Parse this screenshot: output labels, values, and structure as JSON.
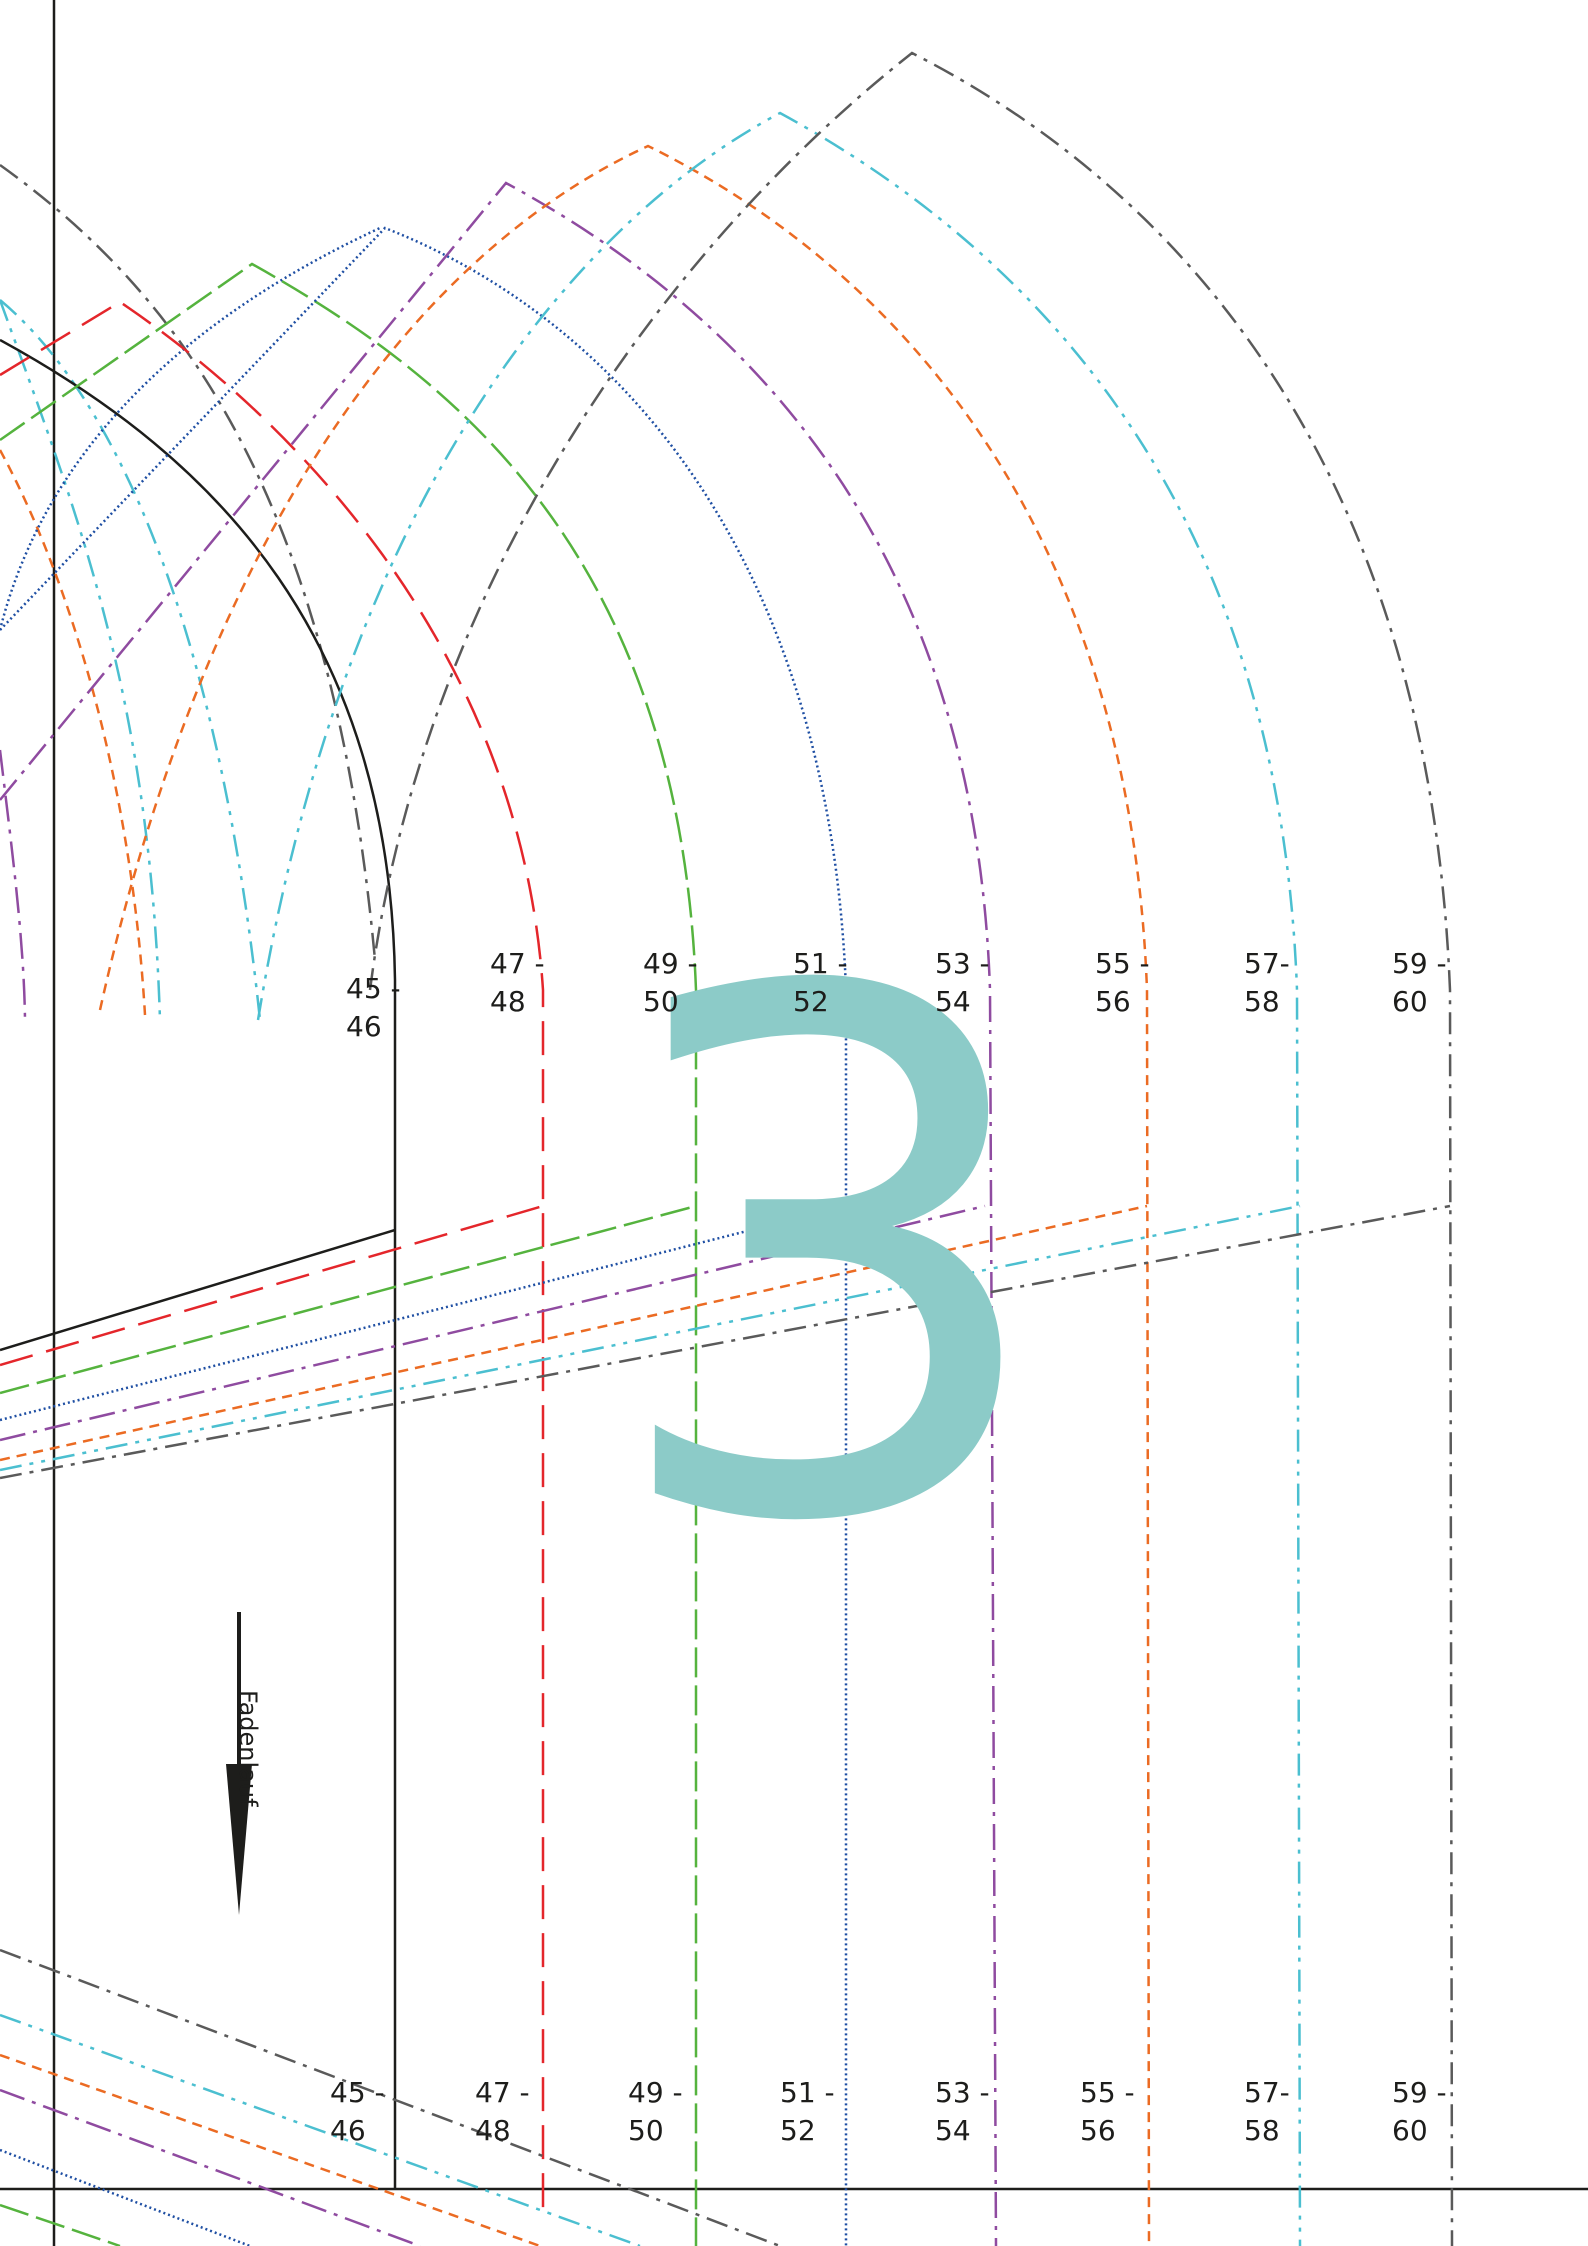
{
  "page_number": "3",
  "grainline_label": "Fadenlauf",
  "colors": {
    "outline": "#1d1d1b",
    "size_45_46": "#1d1d1b",
    "size_47_48": "#e4262b",
    "size_49_50": "#55b33e",
    "size_51_52": "#1f4fa3",
    "size_53_54": "#8f4ba0",
    "size_55_56": "#eb6b23",
    "size_57_58": "#4bbfd0",
    "size_59_60": "#5a5a5a",
    "page_number": "#8ccbc8"
  },
  "size_labels_upper": [
    {
      "id": "45-46",
      "text": "45 -\n46"
    },
    {
      "id": "47-48",
      "text": "47 -\n48"
    },
    {
      "id": "49-50",
      "text": "49 -\n50"
    },
    {
      "id": "51-52",
      "text": "51 -\n52"
    },
    {
      "id": "53-54",
      "text": "53 -\n54"
    },
    {
      "id": "55-56",
      "text": "55 -\n56"
    },
    {
      "id": "57-58",
      "text": "57-\n58"
    },
    {
      "id": "59-60",
      "text": "59 -\n60"
    }
  ],
  "size_labels_lower": [
    {
      "id": "45-46",
      "text": "45 -\n46"
    },
    {
      "id": "47-48",
      "text": "47 -\n48"
    },
    {
      "id": "49-50",
      "text": "49 -\n50"
    },
    {
      "id": "51-52",
      "text": "51 -\n52"
    },
    {
      "id": "53-54",
      "text": "53 -\n54"
    },
    {
      "id": "55-56",
      "text": "55 -\n56"
    },
    {
      "id": "57-58",
      "text": "57-\n58"
    },
    {
      "id": "59-60",
      "text": "59 -\n60"
    }
  ]
}
